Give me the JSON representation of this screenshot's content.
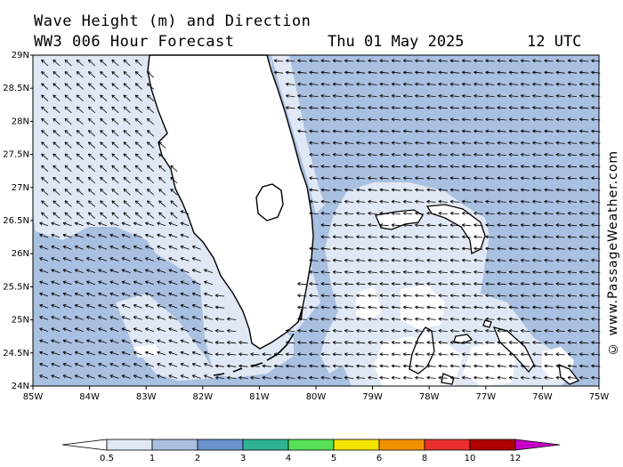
{
  "title": "Wave Height (m) and Direction",
  "subtitle": "WW3 006 Hour Forecast",
  "date": "Thu 01 May 2025",
  "time": "12 UTC",
  "credit": "© www.PassageWeather.com",
  "lat_labels": [
    "29N",
    "28.5N",
    "28N",
    "27.5N",
    "27N",
    "26.5N",
    "26N",
    "25.5N",
    "25N",
    "24.5N",
    "24N"
  ],
  "lon_labels": [
    "85W",
    "84W",
    "83W",
    "82W",
    "81W",
    "80W",
    "79W",
    "78W",
    "77W",
    "76W",
    "75W"
  ],
  "colors": {
    "land": "#ffffff",
    "coast": "#000000",
    "band_0_0_5": "#ffffff",
    "band_0_5_1": "#e1e8f5",
    "band_1_2": "#a9c0e0",
    "band_2_3": "#6a92cd",
    "band_3_4": "#2fb493",
    "band_4_5": "#55e055",
    "band_5_6": "#f2e400",
    "band_6_8": "#f39200",
    "band_8_10": "#e83030",
    "band_10_12": "#b00000",
    "band_12_plus": "#c800c8"
  },
  "legend": {
    "labels": [
      "0.5",
      "1",
      "2",
      "3",
      "4",
      "5",
      "6",
      "8",
      "10",
      "12"
    ],
    "colors": [
      "#ffffff",
      "#e1e8f5",
      "#a9c0e0",
      "#6a92cd",
      "#2fb493",
      "#55e055",
      "#f2e400",
      "#f39200",
      "#e83030",
      "#b00000",
      "#c800c8"
    ]
  }
}
